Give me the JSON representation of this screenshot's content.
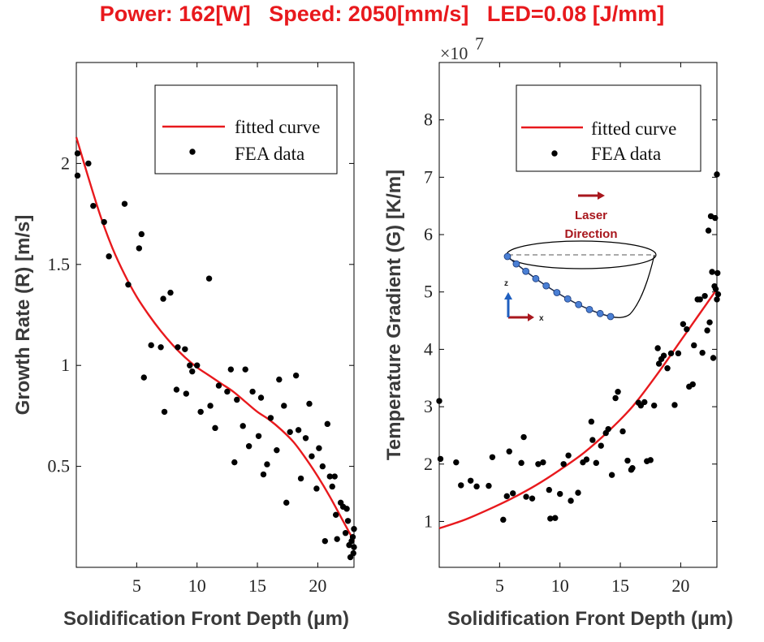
{
  "header": {
    "title": "Power: 162[W]   Speed: 2050[mm/s]   LED=0.08 [J/mm]",
    "title_color": "#e8191d"
  },
  "colors": {
    "curve": "#e8191d",
    "points": "#000000",
    "laser_arrow": "#a8171d",
    "z_arrow": "#1f5fbf",
    "path_points": "#4a7fd4"
  },
  "chart_data": [
    {
      "type": "scatter",
      "title": "",
      "xlabel": "Solidification Front Depth (μm)",
      "ylabel": "Growth Rate (R) [m/s]",
      "xlim": [
        0,
        23
      ],
      "ylim": [
        0,
        2.5
      ],
      "xticks": [
        5,
        10,
        15,
        20
      ],
      "yticks": [
        0.5,
        1,
        1.5,
        2
      ],
      "ytick_labels": [
        "0.5",
        "1",
        "1.5",
        "2"
      ],
      "legend": {
        "position": "top-right",
        "entries": [
          "fitted curve",
          "FEA data"
        ]
      },
      "series": [
        {
          "name": "fitted curve",
          "kind": "line",
          "points": [
            [
              0,
              2.13
            ],
            [
              1,
              1.93
            ],
            [
              2,
              1.74
            ],
            [
              3,
              1.58
            ],
            [
              4,
              1.45
            ],
            [
              5,
              1.34
            ],
            [
              6,
              1.25
            ],
            [
              7,
              1.17
            ],
            [
              8,
              1.1
            ],
            [
              9,
              1.04
            ],
            [
              10,
              0.99
            ],
            [
              11,
              0.95
            ],
            [
              12,
              0.91
            ],
            [
              13,
              0.87
            ],
            [
              14,
              0.82
            ],
            [
              15,
              0.77
            ],
            [
              16,
              0.73
            ],
            [
              17,
              0.68
            ],
            [
              18,
              0.62
            ],
            [
              19,
              0.54
            ],
            [
              20,
              0.45
            ],
            [
              21,
              0.35
            ],
            [
              22,
              0.24
            ],
            [
              23,
              0.13
            ]
          ]
        },
        {
          "name": "FEA data",
          "kind": "scatter",
          "points": [
            [
              0.1,
              2.05
            ],
            [
              0.1,
              1.94
            ],
            [
              1.0,
              2.0
            ],
            [
              1.4,
              1.79
            ],
            [
              2.3,
              1.71
            ],
            [
              2.7,
              1.54
            ],
            [
              4.0,
              1.8
            ],
            [
              4.3,
              1.4
            ],
            [
              5.2,
              1.58
            ],
            [
              5.4,
              1.65
            ],
            [
              5.6,
              0.94
            ],
            [
              6.2,
              1.1
            ],
            [
              7.0,
              1.09
            ],
            [
              7.2,
              1.33
            ],
            [
              7.3,
              0.77
            ],
            [
              7.8,
              1.36
            ],
            [
              8.3,
              0.88
            ],
            [
              8.4,
              1.09
            ],
            [
              9.0,
              1.08
            ],
            [
              9.1,
              0.86
            ],
            [
              9.4,
              1.0
            ],
            [
              9.6,
              0.97
            ],
            [
              10.0,
              1.0
            ],
            [
              10.3,
              0.77
            ],
            [
              11.0,
              1.43
            ],
            [
              11.1,
              0.8
            ],
            [
              11.5,
              0.69
            ],
            [
              11.8,
              0.9
            ],
            [
              12.5,
              0.87
            ],
            [
              12.8,
              0.98
            ],
            [
              13.1,
              0.52
            ],
            [
              13.3,
              0.83
            ],
            [
              13.8,
              0.7
            ],
            [
              14.0,
              0.98
            ],
            [
              14.3,
              0.6
            ],
            [
              14.6,
              0.87
            ],
            [
              15.1,
              0.65
            ],
            [
              15.3,
              0.84
            ],
            [
              15.5,
              0.46
            ],
            [
              15.8,
              0.51
            ],
            [
              16.1,
              0.74
            ],
            [
              16.6,
              0.58
            ],
            [
              16.8,
              0.93
            ],
            [
              17.2,
              0.8
            ],
            [
              17.4,
              0.32
            ],
            [
              17.7,
              0.67
            ],
            [
              18.2,
              0.95
            ],
            [
              18.4,
              0.68
            ],
            [
              18.6,
              0.44
            ],
            [
              19.0,
              0.64
            ],
            [
              19.3,
              0.81
            ],
            [
              19.5,
              0.55
            ],
            [
              19.9,
              0.39
            ],
            [
              20.1,
              0.59
            ],
            [
              20.4,
              0.5
            ],
            [
              20.6,
              0.13
            ],
            [
              20.8,
              0.71
            ],
            [
              21.0,
              0.45
            ],
            [
              21.2,
              0.4
            ],
            [
              21.4,
              0.45
            ],
            [
              21.5,
              0.26
            ],
            [
              21.6,
              0.14
            ],
            [
              21.9,
              0.32
            ],
            [
              22.1,
              0.3
            ],
            [
              22.3,
              0.17
            ],
            [
              22.4,
              0.29
            ],
            [
              22.5,
              0.23
            ],
            [
              22.6,
              0.11
            ],
            [
              22.7,
              0.05
            ],
            [
              22.8,
              0.13
            ],
            [
              22.9,
              0.15
            ],
            [
              22.95,
              0.07
            ],
            [
              23.0,
              0.19
            ],
            [
              23.0,
              0.1
            ]
          ]
        }
      ]
    },
    {
      "type": "scatter",
      "title": "",
      "xlabel": "Solidification Front Depth (μm)",
      "ylabel": "Temperature Gradient (G) [K/m]",
      "y_multiplier": "×10",
      "y_multiplier_exponent": "7",
      "xlim": [
        0,
        23
      ],
      "ylim": [
        0.2,
        9.0
      ],
      "xticks": [
        5,
        10,
        15,
        20
      ],
      "yticks": [
        1,
        2,
        3,
        4,
        5,
        6,
        7,
        8
      ],
      "ytick_labels": [
        "1",
        "2",
        "3",
        "4",
        "5",
        "6",
        "7",
        "8"
      ],
      "legend": {
        "position": "top-right",
        "entries": [
          "fitted curve",
          "FEA data"
        ]
      },
      "inset": {
        "label_line1": "Laser",
        "label_line2": "Direction",
        "x_axis": "x",
        "z_axis": "z"
      },
      "series": [
        {
          "name": "fitted curve",
          "kind": "line",
          "points": [
            [
              0,
              0.88
            ],
            [
              2,
              1.02
            ],
            [
              4,
              1.2
            ],
            [
              6,
              1.4
            ],
            [
              8,
              1.63
            ],
            [
              10,
              1.9
            ],
            [
              12,
              2.2
            ],
            [
              14,
              2.57
            ],
            [
              16,
              3.0
            ],
            [
              18,
              3.55
            ],
            [
              20,
              4.15
            ],
            [
              21,
              4.45
            ],
            [
              22,
              4.75
            ],
            [
              23,
              5.05
            ]
          ]
        },
        {
          "name": "FEA data",
          "kind": "scatter",
          "points": [
            [
              0.0,
              3.1
            ],
            [
              0.1,
              2.09
            ],
            [
              1.4,
              2.03
            ],
            [
              1.8,
              1.63
            ],
            [
              2.6,
              1.71
            ],
            [
              3.1,
              1.61
            ],
            [
              4.1,
              1.62
            ],
            [
              4.4,
              2.12
            ],
            [
              5.3,
              1.03
            ],
            [
              5.6,
              1.44
            ],
            [
              6.1,
              1.49
            ],
            [
              5.8,
              2.22
            ],
            [
              6.8,
              2.02
            ],
            [
              7.0,
              2.47
            ],
            [
              7.2,
              1.43
            ],
            [
              7.7,
              1.4
            ],
            [
              8.2,
              2.0
            ],
            [
              8.6,
              2.03
            ],
            [
              9.1,
              1.55
            ],
            [
              9.2,
              1.05
            ],
            [
              9.6,
              1.06
            ],
            [
              10.0,
              1.48
            ],
            [
              10.3,
              2.0
            ],
            [
              10.7,
              2.15
            ],
            [
              10.9,
              1.36
            ],
            [
              11.5,
              1.5
            ],
            [
              11.9,
              2.03
            ],
            [
              12.2,
              2.08
            ],
            [
              12.6,
              2.74
            ],
            [
              12.7,
              2.42
            ],
            [
              13.0,
              2.02
            ],
            [
              13.4,
              2.32
            ],
            [
              13.8,
              2.54
            ],
            [
              14.0,
              2.61
            ],
            [
              14.3,
              1.81
            ],
            [
              14.6,
              3.15
            ],
            [
              14.8,
              3.26
            ],
            [
              15.2,
              2.57
            ],
            [
              15.6,
              2.06
            ],
            [
              15.9,
              1.9
            ],
            [
              16.0,
              1.93
            ],
            [
              16.5,
              3.07
            ],
            [
              16.7,
              3.02
            ],
            [
              17.0,
              3.08
            ],
            [
              17.2,
              2.05
            ],
            [
              17.5,
              2.07
            ],
            [
              17.8,
              3.02
            ],
            [
              18.1,
              4.02
            ],
            [
              18.2,
              3.75
            ],
            [
              18.4,
              3.83
            ],
            [
              18.6,
              3.89
            ],
            [
              18.9,
              3.67
            ],
            [
              19.2,
              3.93
            ],
            [
              19.5,
              3.03
            ],
            [
              19.8,
              3.93
            ],
            [
              20.2,
              4.44
            ],
            [
              20.5,
              4.35
            ],
            [
              20.7,
              3.35
            ],
            [
              21.0,
              3.39
            ],
            [
              21.1,
              4.07
            ],
            [
              21.4,
              4.87
            ],
            [
              21.6,
              4.87
            ],
            [
              21.8,
              3.94
            ],
            [
              22.0,
              4.93
            ],
            [
              22.2,
              4.33
            ],
            [
              22.3,
              6.07
            ],
            [
              22.4,
              4.47
            ],
            [
              22.5,
              6.32
            ],
            [
              22.6,
              5.35
            ],
            [
              22.7,
              3.85
            ],
            [
              22.8,
              5.1
            ],
            [
              22.85,
              6.29
            ],
            [
              22.9,
              5.05
            ],
            [
              23.0,
              7.05
            ],
            [
              23.0,
              4.87
            ],
            [
              23.05,
              5.33
            ],
            [
              23.1,
              4.96
            ]
          ]
        }
      ]
    }
  ]
}
